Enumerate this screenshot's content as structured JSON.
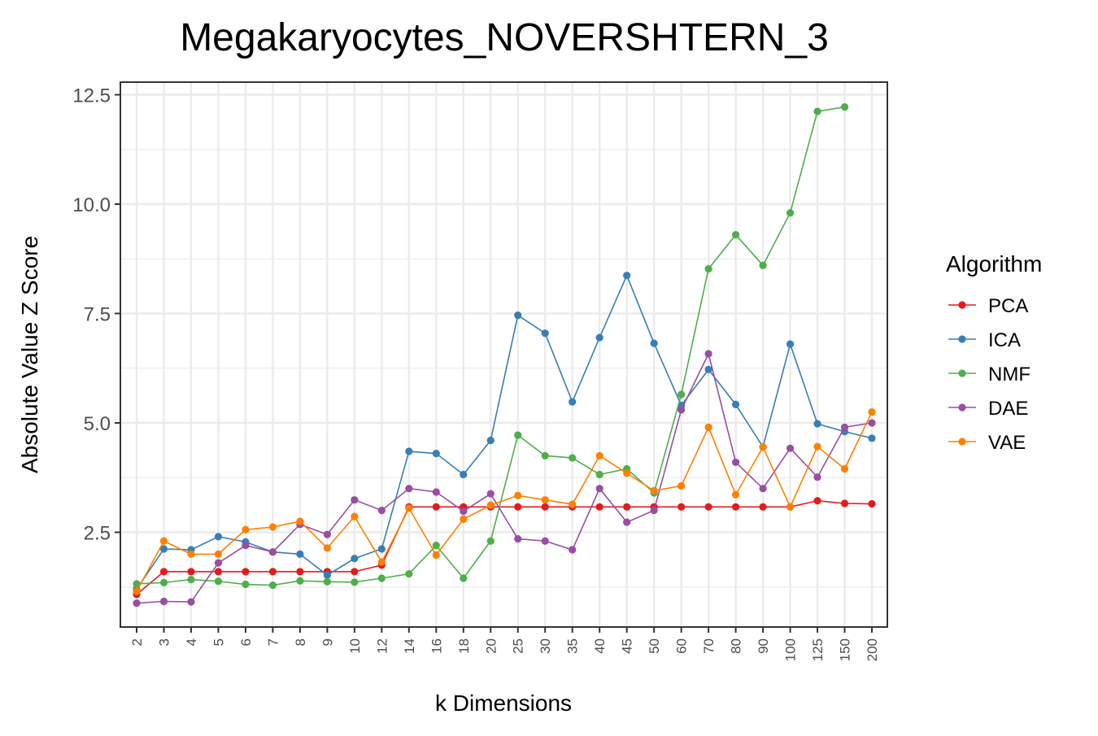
{
  "chart_data": {
    "type": "line",
    "title": "Megakaryocytes_NOVERSHTERN_3",
    "xlabel": "k Dimensions",
    "ylabel": "Absolute Value Z Score",
    "categories": [
      "2",
      "3",
      "4",
      "5",
      "6",
      "7",
      "8",
      "9",
      "10",
      "12",
      "14",
      "16",
      "18",
      "20",
      "25",
      "30",
      "35",
      "40",
      "45",
      "50",
      "60",
      "70",
      "80",
      "90",
      "100",
      "125",
      "150",
      "200"
    ],
    "yticks": [
      "2.5",
      "5.0",
      "7.5",
      "10.0",
      "12.5"
    ],
    "ytick_values": [
      2.5,
      5.0,
      7.5,
      10.0,
      12.5
    ],
    "ylim": [
      0.3,
      12.8
    ],
    "grid": true,
    "legend": {
      "title": "Algorithm",
      "placement": "right"
    },
    "series": [
      {
        "name": "PCA",
        "color": "#e41a1c",
        "values": [
          1.08,
          1.6,
          1.6,
          1.6,
          1.6,
          1.6,
          1.6,
          1.6,
          1.6,
          1.75,
          3.08,
          3.08,
          3.08,
          3.08,
          3.08,
          3.08,
          3.08,
          3.08,
          3.08,
          3.08,
          3.08,
          3.08,
          3.08,
          3.08,
          3.08,
          3.22,
          3.16,
          3.15
        ]
      },
      {
        "name": "ICA",
        "color": "#377eb8",
        "values": [
          1.2,
          2.12,
          2.1,
          2.4,
          2.28,
          2.05,
          2.0,
          1.52,
          1.9,
          2.12,
          4.35,
          4.3,
          3.82,
          4.6,
          7.46,
          7.05,
          5.48,
          6.95,
          8.37,
          6.82,
          5.4,
          6.22,
          5.42,
          4.45,
          6.8,
          4.98,
          4.8,
          4.65
        ]
      },
      {
        "name": "NMF",
        "color": "#4daf4a",
        "values": [
          1.32,
          1.35,
          1.42,
          1.38,
          1.31,
          1.29,
          1.39,
          1.37,
          1.36,
          1.45,
          1.55,
          2.2,
          1.45,
          2.3,
          4.72,
          4.25,
          4.2,
          3.82,
          3.95,
          3.4,
          5.65,
          8.52,
          9.3,
          8.6,
          9.8,
          12.12,
          12.22,
          null
        ]
      },
      {
        "name": "DAE",
        "color": "#984ea3",
        "values": [
          0.88,
          0.92,
          0.91,
          1.8,
          2.2,
          2.05,
          2.68,
          2.45,
          3.24,
          3.0,
          3.5,
          3.42,
          2.98,
          3.38,
          2.35,
          2.3,
          2.1,
          3.5,
          2.73,
          3.0,
          5.3,
          6.58,
          4.1,
          3.5,
          4.42,
          3.76,
          4.9,
          5.0
        ]
      },
      {
        "name": "VAE",
        "color": "#ff7f00",
        "values": [
          1.15,
          2.3,
          2.0,
          2.0,
          2.56,
          2.62,
          2.75,
          2.14,
          2.86,
          1.82,
          3.05,
          1.98,
          2.8,
          3.12,
          3.34,
          3.24,
          3.14,
          4.25,
          3.85,
          3.45,
          3.56,
          4.9,
          3.36,
          4.45,
          3.08,
          4.46,
          3.95,
          5.25
        ]
      }
    ]
  }
}
